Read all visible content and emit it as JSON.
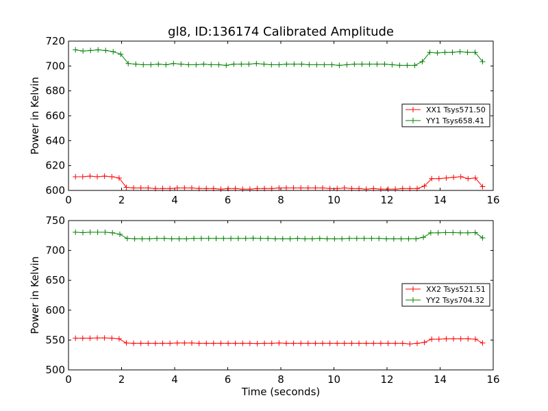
{
  "chart_data": [
    {
      "type": "line",
      "title": "gl8, ID:136174 Calibrated Amplitude",
      "xlabel": "",
      "ylabel": "Power in Kelvin",
      "xlim": [
        0,
        16
      ],
      "ylim": [
        600,
        720
      ],
      "xticks": [
        "0",
        "2",
        "4",
        "6",
        "8",
        "10",
        "12",
        "14",
        "16"
      ],
      "yticks": [
        "600",
        "620",
        "640",
        "660",
        "680",
        "700",
        "720"
      ],
      "legend_position": "center-right",
      "series": [
        {
          "name": "XX1 Tsys571.50",
          "color": "#ff0000",
          "values": [
            611,
            611,
            611.5,
            611,
            611.5,
            611,
            610,
            602.5,
            602,
            602,
            602,
            601.5,
            601.5,
            601.5,
            602,
            602,
            602,
            601.5,
            601.5,
            601.5,
            601,
            601.5,
            601.5,
            601,
            601,
            601.5,
            601.5,
            601.5,
            602,
            602,
            602,
            602,
            602,
            602,
            602,
            601.5,
            601.5,
            602,
            601.5,
            601.5,
            601,
            601.5,
            601,
            601,
            601,
            601.5,
            601.5,
            601.5,
            603.5,
            609.5,
            609.5,
            610,
            610.5,
            611,
            609.5,
            610,
            603
          ]
        },
        {
          "name": "YY1 Tsys658.41",
          "color": "#008000",
          "values": [
            713,
            712,
            712.5,
            713,
            712.5,
            711.5,
            709.5,
            702,
            701.5,
            701,
            701,
            701.5,
            701,
            702,
            701.5,
            701,
            701,
            701.5,
            701,
            701,
            700.5,
            701.5,
            701.5,
            701.5,
            702,
            701.5,
            701,
            701,
            701.5,
            701.5,
            701.5,
            701,
            701,
            701,
            701,
            700.5,
            701,
            701.5,
            701.5,
            701.5,
            701.5,
            701.5,
            701,
            700.5,
            700.5,
            700.5,
            703.5,
            711,
            710.5,
            711,
            711,
            711.5,
            711,
            711,
            703.5
          ]
        }
      ]
    },
    {
      "type": "line",
      "title": "",
      "xlabel": "Time (seconds)",
      "ylabel": "Power in Kelvin",
      "xlim": [
        0,
        16
      ],
      "ylim": [
        500,
        750
      ],
      "xticks": [
        "0",
        "2",
        "4",
        "6",
        "8",
        "10",
        "12",
        "14",
        "16"
      ],
      "yticks": [
        "500",
        "550",
        "600",
        "650",
        "700",
        "750"
      ],
      "legend_position": "center-right",
      "series": [
        {
          "name": "XX2 Tsys521.51",
          "color": "#ff0000",
          "values": [
            553,
            553,
            553,
            553.5,
            553.5,
            553,
            552,
            545,
            544.5,
            544.5,
            544.5,
            544.5,
            544.5,
            544.5,
            545,
            545,
            545,
            544.5,
            544.5,
            544.5,
            544.5,
            544.5,
            544.5,
            544.5,
            544.5,
            544,
            544.5,
            544.5,
            545,
            544.5,
            544.5,
            544.5,
            544.5,
            544.5,
            544.5,
            544.5,
            544.5,
            544.5,
            544.5,
            544.5,
            544.5,
            544.5,
            544.5,
            544.5,
            544.5,
            544.5,
            543.5,
            544.5,
            546,
            551.5,
            551.5,
            552,
            552,
            552,
            552,
            551.5,
            545
          ]
        },
        {
          "name": "YY2 Tsys704.32",
          "color": "#008000",
          "values": [
            730.5,
            730,
            730.5,
            730.5,
            730.5,
            729.5,
            727,
            720,
            719.5,
            719.5,
            719.5,
            720,
            720,
            719.5,
            719.5,
            719.5,
            720,
            720,
            720,
            720,
            720,
            720,
            720,
            720,
            720.5,
            720,
            720,
            719.5,
            719.5,
            719.5,
            720,
            719.5,
            719.5,
            720,
            719.5,
            719.5,
            719.5,
            720,
            720,
            720,
            720,
            720,
            719.5,
            719.5,
            719.5,
            719.5,
            719.5,
            722,
            729.5,
            729.5,
            730,
            730,
            729.5,
            729.5,
            730,
            721
          ]
        }
      ]
    }
  ]
}
